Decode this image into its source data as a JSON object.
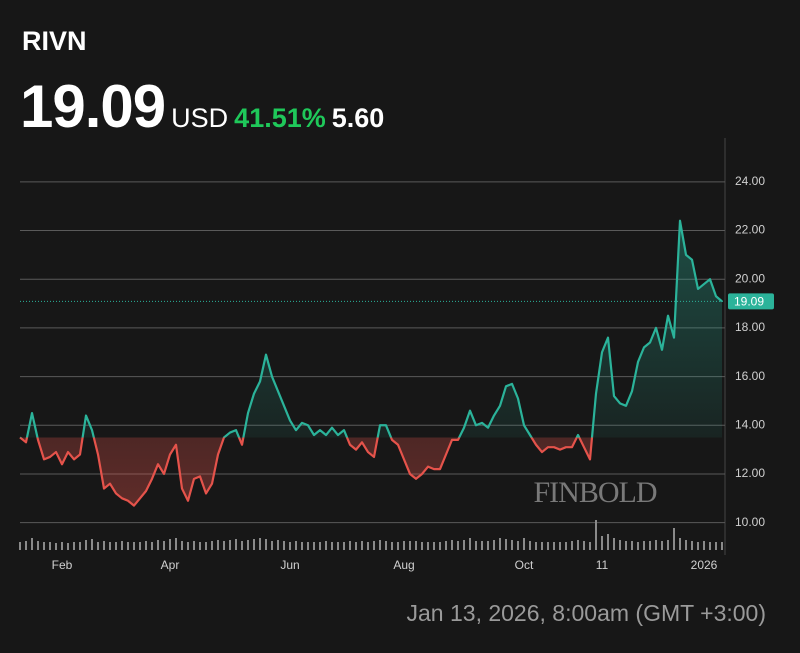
{
  "header": {
    "ticker": "RIVN",
    "price": "19.09",
    "currency": "USD",
    "change_percent": "41.51%",
    "change": "5.60"
  },
  "timestamp": "Jan 13, 2026, 8:00am (GMT +3:00)",
  "watermark": "FINBOLD",
  "chart_data": {
    "type": "line",
    "categories": [
      null,
      null,
      null,
      null,
      null,
      null,
      null,
      "Feb",
      null,
      null,
      null,
      null,
      null,
      null,
      null,
      null,
      null,
      null,
      null,
      null,
      null,
      null,
      null,
      null,
      null,
      "Apr",
      null,
      null,
      null,
      null,
      null,
      null,
      null,
      null,
      null,
      null,
      null,
      null,
      null,
      null,
      null,
      null,
      null,
      null,
      null,
      "Jun",
      null,
      null,
      null,
      null,
      null,
      null,
      null,
      null,
      null,
      null,
      null,
      null,
      null,
      null,
      null,
      null,
      null,
      null,
      "Aug",
      null,
      null,
      null,
      null,
      null,
      null,
      null,
      null,
      null,
      null,
      null,
      null,
      null,
      null,
      null,
      null,
      null,
      null,
      null,
      "Oct",
      null,
      null,
      null,
      null,
      null,
      null,
      null,
      null,
      null,
      null,
      null,
      null,
      "11",
      null,
      null,
      null,
      null,
      null,
      null,
      null,
      null,
      null,
      null,
      null,
      null,
      null,
      null,
      null,
      null,
      "2026",
      null,
      null,
      null
    ],
    "values": [
      13.5,
      13.3,
      14.5,
      13.4,
      12.6,
      12.7,
      12.9,
      12.4,
      12.9,
      12.6,
      12.8,
      14.4,
      13.8,
      12.8,
      11.4,
      11.6,
      11.2,
      11.0,
      10.9,
      10.7,
      11.0,
      11.3,
      11.8,
      12.4,
      12.0,
      12.8,
      13.2,
      11.4,
      10.9,
      11.8,
      11.9,
      11.2,
      11.6,
      12.8,
      13.5,
      13.7,
      13.8,
      13.2,
      14.5,
      15.3,
      15.8,
      16.9,
      16.0,
      15.4,
      14.8,
      14.2,
      13.8,
      14.1,
      14.0,
      13.6,
      13.8,
      13.6,
      13.9,
      13.6,
      13.8,
      13.2,
      13.0,
      13.3,
      12.9,
      12.7,
      14.0,
      14.0,
      13.4,
      13.2,
      12.6,
      12.0,
      11.8,
      12.0,
      12.3,
      12.2,
      12.2,
      12.8,
      13.4,
      13.4,
      13.9,
      14.6,
      14.0,
      14.1,
      13.9,
      14.4,
      14.8,
      15.6,
      15.7,
      15.1,
      14.0,
      13.6,
      13.2,
      12.9,
      13.1,
      13.1,
      13.0,
      13.1,
      13.1,
      13.6,
      13.1,
      12.6,
      15.3,
      17.0,
      17.6,
      15.2,
      14.9,
      14.8,
      15.4,
      16.6,
      17.2,
      17.4,
      18.0,
      17.1,
      18.5,
      17.6,
      22.4,
      21.0,
      20.8,
      19.6,
      19.8,
      20.0,
      19.3,
      19.09
    ],
    "volume": [
      8,
      9,
      12,
      9,
      8,
      8,
      7,
      8,
      7,
      8,
      8,
      10,
      11,
      8,
      9,
      8,
      8,
      9,
      8,
      8,
      8,
      9,
      8,
      10,
      9,
      11,
      12,
      9,
      8,
      9,
      8,
      8,
      9,
      10,
      9,
      10,
      11,
      9,
      10,
      11,
      12,
      11,
      9,
      10,
      9,
      8,
      9,
      8,
      8,
      8,
      8,
      9,
      8,
      8,
      8,
      9,
      8,
      9,
      8,
      9,
      10,
      9,
      8,
      8,
      9,
      9,
      9,
      8,
      8,
      8,
      8,
      9,
      10,
      9,
      10,
      12,
      9,
      9,
      9,
      10,
      12,
      11,
      10,
      9,
      12,
      9,
      8,
      8,
      8,
      8,
      8,
      8,
      9,
      10,
      9,
      8,
      30,
      14,
      16,
      12,
      10,
      9,
      9,
      8,
      9,
      9,
      10,
      9,
      10,
      22,
      12,
      10,
      9,
      8,
      9,
      8,
      8,
      8
    ],
    "color_up": "#2bb39a",
    "color_down": "#e5534b",
    "volume_color": "#8a8a8a",
    "ylim": [
      9,
      25.8
    ],
    "yticks": [
      {
        "value": 10,
        "label": "10.00"
      },
      {
        "value": 12,
        "label": "12.00"
      },
      {
        "value": 14,
        "label": "14.00"
      },
      {
        "value": 16,
        "label": "16.00"
      },
      {
        "value": 18,
        "label": "18.00"
      },
      {
        "value": 20,
        "label": "20.00"
      },
      {
        "value": 22,
        "label": "22.00"
      },
      {
        "value": 24,
        "label": "24.00"
      }
    ],
    "grid": true
  }
}
